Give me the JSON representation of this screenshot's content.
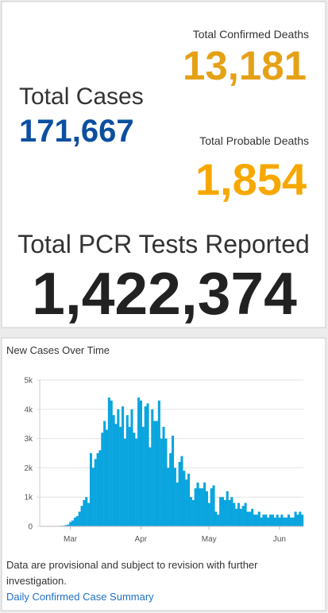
{
  "stats": {
    "confirmed_deaths": {
      "label": "Total Confirmed Deaths",
      "value": "13,181"
    },
    "total_cases": {
      "label": "Total Cases",
      "value": "171,667"
    },
    "probable_deaths": {
      "label": "Total Probable Deaths",
      "value": "1,854"
    },
    "pcr_tests": {
      "label": "Total PCR Tests Reported",
      "value": "1,422,374"
    }
  },
  "chart_data": {
    "type": "bar",
    "title": "New Cases Over Time",
    "color": "#0aa5df",
    "grid": true,
    "categories": [
      null,
      null,
      null,
      null,
      null,
      null,
      null,
      null,
      null,
      null,
      null,
      null,
      null,
      "Mar",
      null,
      null,
      null,
      null,
      null,
      null,
      null,
      null,
      null,
      null,
      null,
      null,
      null,
      null,
      null,
      null,
      null,
      null,
      null,
      null,
      null,
      null,
      null,
      null,
      null,
      null,
      null,
      null,
      null,
      null,
      "Apr",
      null,
      null,
      null,
      null,
      null,
      null,
      null,
      null,
      null,
      null,
      null,
      null,
      null,
      null,
      null,
      null,
      null,
      null,
      null,
      null,
      null,
      null,
      null,
      null,
      null,
      null,
      null,
      null,
      null,
      "May",
      null,
      null,
      null,
      null,
      null,
      null,
      null,
      null,
      null,
      null,
      null,
      null,
      null,
      null,
      null,
      null,
      null,
      null,
      null,
      null,
      null,
      null,
      null,
      null,
      null,
      null,
      null,
      null,
      null,
      null,
      "Jun",
      null,
      null,
      null,
      null,
      null,
      null,
      null,
      null,
      null,
      null
    ],
    "values": [
      0,
      0,
      0,
      0,
      0,
      0,
      0,
      0,
      10,
      20,
      20,
      40,
      60,
      150,
      200,
      300,
      350,
      500,
      700,
      900,
      1000,
      800,
      2500,
      2000,
      2300,
      2500,
      2600,
      3200,
      3600,
      3300,
      4400,
      4300,
      3800,
      3500,
      4000,
      3400,
      4100,
      3000,
      3800,
      3400,
      4000,
      3200,
      3000,
      4400,
      4300,
      3400,
      4100,
      4200,
      2700,
      4000,
      3600,
      3600,
      4300,
      3000,
      3400,
      3000,
      2000,
      2500,
      3100,
      2000,
      1500,
      2200,
      2400,
      1900,
      1600,
      1800,
      1000,
      900,
      1300,
      1500,
      1300,
      1300,
      1500,
      1200,
      800,
      1300,
      1400,
      500,
      400,
      1000,
      1000,
      900,
      1200,
      900,
      1000,
      800,
      600,
      800,
      600,
      700,
      800,
      500,
      500,
      600,
      400,
      400,
      500,
      300,
      400,
      400,
      300,
      400,
      400,
      300,
      400,
      300,
      400,
      300,
      300,
      400,
      300,
      300,
      500,
      400,
      500,
      400
    ],
    "ylim": [
      0,
      5000
    ],
    "yticks": [
      0,
      {
        "value": 1000,
        "label": "1k"
      },
      {
        "value": 2000,
        "label": "2k"
      },
      {
        "value": 3000,
        "label": "3k"
      },
      {
        "value": 4000,
        "label": "4k"
      },
      {
        "value": 5000,
        "label": "5k"
      }
    ]
  },
  "footer": {
    "note": "Data are provisional and subject to revision with further investigation.",
    "link": "Daily Confirmed Case Summary"
  }
}
